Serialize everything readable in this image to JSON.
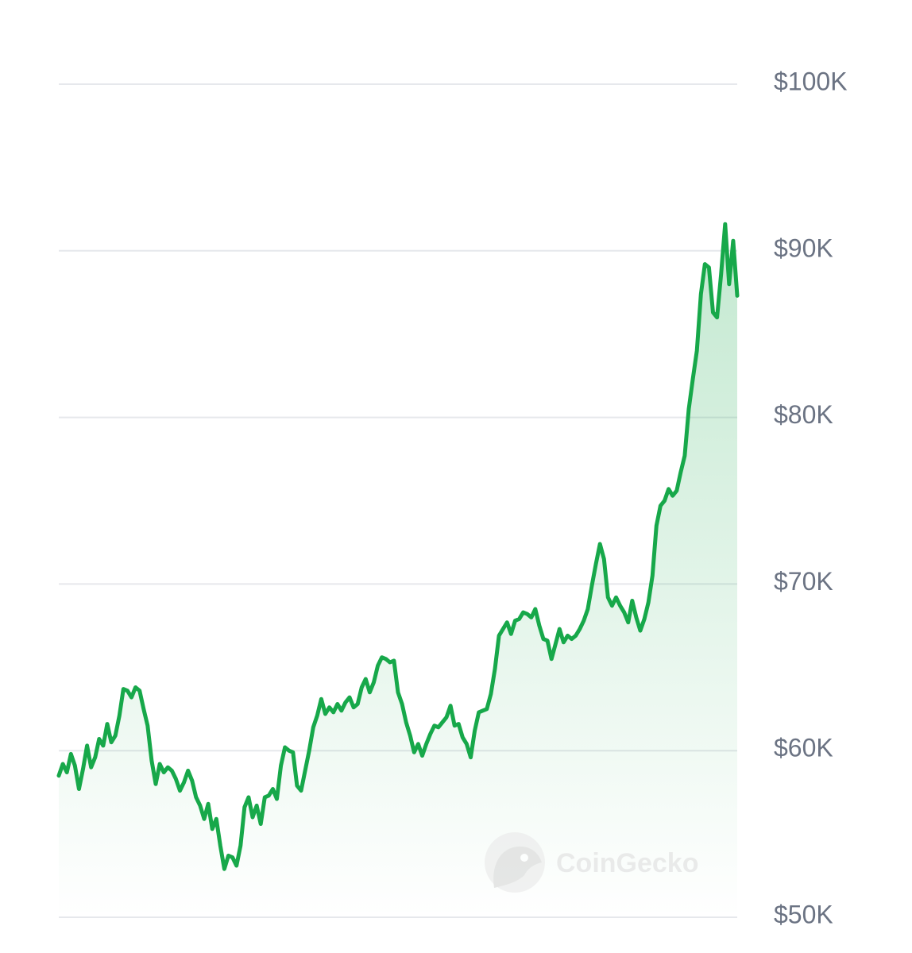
{
  "chart_data": {
    "type": "area",
    "y_ticks": [
      {
        "value": 100000,
        "label": "$100K"
      },
      {
        "value": 90000,
        "label": "$90K"
      },
      {
        "value": 80000,
        "label": "$80K"
      },
      {
        "value": 70000,
        "label": "$70K"
      },
      {
        "value": 60000,
        "label": "$60K"
      },
      {
        "value": 50000,
        "label": "$50K"
      }
    ],
    "ylim": [
      50000,
      100000
    ],
    "y_axis_position": "right",
    "grid": true,
    "legend": "none",
    "series": [
      {
        "color": "#17a84a",
        "fill_color": "#17a84a",
        "values": [
          58500,
          59200,
          58700,
          59800,
          59100,
          57700,
          58900,
          60300,
          59000,
          59600,
          60700,
          60300,
          61600,
          60500,
          60900,
          62100,
          63700,
          63600,
          63200,
          63800,
          63600,
          62500,
          61500,
          59400,
          58000,
          59200,
          58700,
          59000,
          58800,
          58300,
          57600,
          58100,
          58800,
          58200,
          57200,
          56700,
          55900,
          56800,
          55300,
          55900,
          54300,
          52900,
          53700,
          53600,
          53100,
          54300,
          56600,
          57200,
          56000,
          56700,
          55600,
          57200,
          57300,
          57700,
          57100,
          59100,
          60200,
          60000,
          59900,
          57900,
          57600,
          58800,
          60000,
          61400,
          62100,
          63100,
          62200,
          62600,
          62300,
          62800,
          62400,
          62900,
          63200,
          62600,
          62800,
          63800,
          64300,
          63500,
          64100,
          65100,
          65600,
          65500,
          65300,
          65400,
          63500,
          62800,
          61700,
          60900,
          59900,
          60400,
          59700,
          60400,
          61000,
          61500,
          61400,
          61700,
          62000,
          62700,
          61500,
          61600,
          60800,
          60400,
          59600,
          61200,
          62300,
          62400,
          62500,
          63400,
          64900,
          66900,
          67300,
          67700,
          67000,
          67800,
          67900,
          68300,
          68200,
          68000,
          68500,
          67500,
          66700,
          66600,
          65500,
          66400,
          67300,
          66500,
          66900,
          66700,
          66900,
          67300,
          67800,
          68500,
          69900,
          71200,
          72400,
          71500,
          69200,
          68700,
          69200,
          68700,
          68300,
          67700,
          69000,
          68000,
          67200,
          67900,
          68900,
          70500,
          73500,
          74700,
          75000,
          75700,
          75300,
          75600,
          76700,
          77700,
          80500,
          82300,
          84000,
          87400,
          89200,
          89000,
          86300,
          86000,
          88600,
          91600,
          88000,
          90600,
          87300
        ]
      }
    ],
    "watermark": "CoinGecko"
  }
}
